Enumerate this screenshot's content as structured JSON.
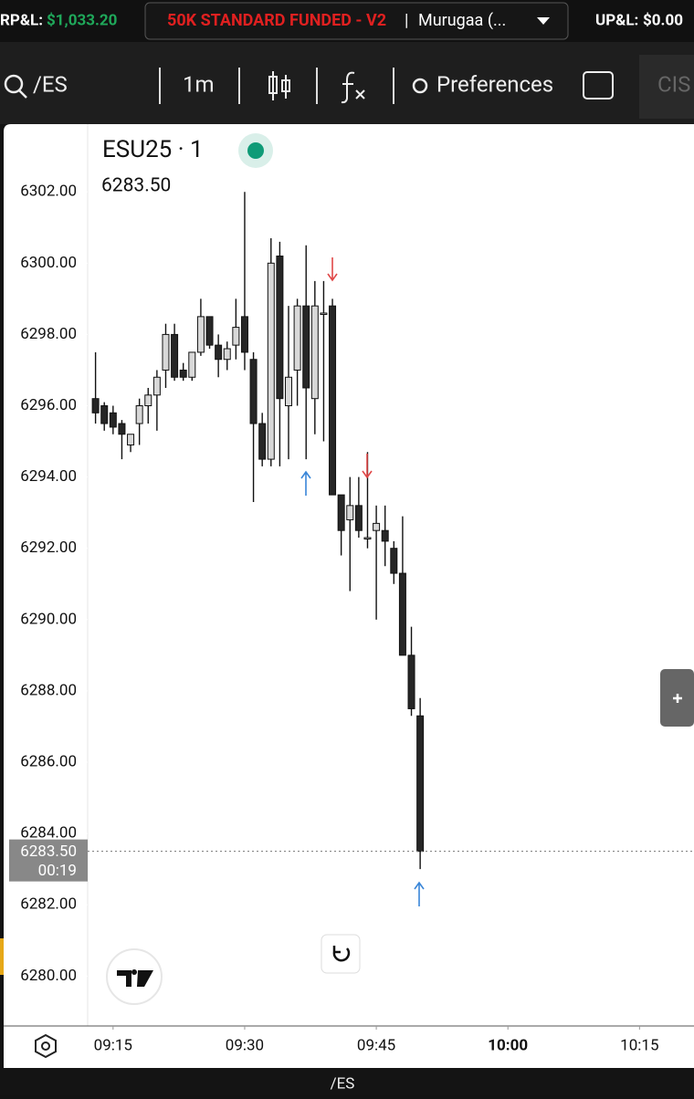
{
  "header": {
    "rpl_label": "RP&L:",
    "rpl_value": "$1,033.20",
    "account": "50K STANDARD FUNDED - V2",
    "separator": "|",
    "user": "Murugaa (...",
    "upl_label": "UP&L:",
    "upl_value": "$0.00"
  },
  "toolbar": {
    "symbol": "/ES",
    "interval": "1m",
    "preferences": "Preferences",
    "cut_tab": "CIS"
  },
  "footer": {
    "symbol": "/ES"
  },
  "chart_data": {
    "type": "candlestick",
    "title": "ESU25 · 1",
    "x": [
      "09:13",
      "09:14",
      "09:15",
      "09:16",
      "09:17",
      "09:18",
      "09:19",
      "09:20",
      "09:21",
      "09:22",
      "09:23",
      "09:24",
      "09:25",
      "09:26",
      "09:27",
      "09:28",
      "09:29",
      "09:30",
      "09:31",
      "09:32",
      "09:33",
      "09:34",
      "09:35",
      "09:36",
      "09:37",
      "09:38",
      "09:39",
      "09:40",
      "09:41",
      "09:42",
      "09:43",
      "09:44",
      "09:45",
      "09:46",
      "09:47",
      "09:48",
      "09:49",
      "09:50"
    ],
    "open": [
      6296.2,
      6296.0,
      6295.8,
      6295.5,
      6294.9,
      6295.5,
      6296.0,
      6296.3,
      6297.0,
      6298.0,
      6297.0,
      6296.8,
      6297.5,
      6298.5,
      6297.7,
      6297.3,
      6297.7,
      6298.5,
      6297.3,
      6295.5,
      6294.5,
      6300.2,
      6296.0,
      6297.0,
      6298.8,
      6296.2,
      6298.6,
      6298.8,
      6293.5,
      6292.8,
      6293.2,
      6292.3,
      6292.5,
      6292.5,
      6292.0,
      6291.3,
      6289.0,
      6287.3
    ],
    "high": [
      6297.5,
      6296.1,
      6296.0,
      6295.6,
      6295.2,
      6296.2,
      6296.5,
      6297.0,
      6298.3,
      6298.3,
      6297.2,
      6297.5,
      6299.0,
      6298.5,
      6298.0,
      6297.8,
      6299.0,
      6302.0,
      6297.5,
      6295.8,
      6300.7,
      6300.6,
      6298.8,
      6299.0,
      6300.5,
      6299.5,
      6299.5,
      6299.0,
      6293.5,
      6294.0,
      6294.0,
      6294.7,
      6293.2,
      6293.2,
      6292.2,
      6292.9,
      6289.8,
      6287.8
    ],
    "low": [
      6295.5,
      6295.3,
      6295.2,
      6294.5,
      6294.7,
      6294.9,
      6295.5,
      6295.3,
      6296.5,
      6296.7,
      6296.7,
      6296.7,
      6297.4,
      6297.6,
      6296.8,
      6297.0,
      6297.3,
      6297.0,
      6293.3,
      6294.3,
      6294.3,
      6294.3,
      6294.5,
      6296.0,
      6294.5,
      6295.2,
      6295.0,
      6293.5,
      6291.8,
      6290.8,
      6292.3,
      6292.0,
      6290.0,
      6291.5,
      6291.0,
      6289.0,
      6287.3,
      6283.0
    ],
    "close": [
      6295.8,
      6295.5,
      6295.4,
      6295.2,
      6295.2,
      6296.0,
      6296.3,
      6296.8,
      6298.0,
      6296.8,
      6296.8,
      6297.5,
      6298.5,
      6297.7,
      6297.3,
      6297.6,
      6298.2,
      6297.5,
      6295.5,
      6294.5,
      6300.0,
      6296.2,
      6296.8,
      6298.8,
      6296.5,
      6298.8,
      6298.6,
      6293.5,
      6292.5,
      6293.2,
      6292.5,
      6292.3,
      6292.7,
      6292.2,
      6291.3,
      6289.0,
      6287.5,
      6283.5
    ],
    "up_color": "#d8d8d8",
    "down_color": "#262626",
    "last_price": {
      "value": 6283.5,
      "label": "6283.50"
    },
    "countdown": "00:19",
    "xlim": [
      "09:12",
      "10:21"
    ],
    "xticks": [
      "09:15",
      "09:30",
      "09:45",
      "10:00",
      "10:15"
    ],
    "ylim": [
      6278.6,
      6303.9
    ],
    "yticks": [
      {
        "value": 6280,
        "label": "6280.00"
      },
      {
        "value": 6282,
        "label": "6282.00"
      },
      {
        "value": 6284,
        "label": "6284.00"
      },
      {
        "value": 6286,
        "label": "6286.00"
      },
      {
        "value": 6288,
        "label": "6288.00"
      },
      {
        "value": 6290,
        "label": "6290.00"
      },
      {
        "value": 6292,
        "label": "6292.00"
      },
      {
        "value": 6294,
        "label": "6294.00"
      },
      {
        "value": 6296,
        "label": "6296.00"
      },
      {
        "value": 6298,
        "label": "6298.00"
      },
      {
        "value": 6300,
        "label": "6300.00"
      },
      {
        "value": 6302,
        "label": "6302.00"
      }
    ]
  }
}
